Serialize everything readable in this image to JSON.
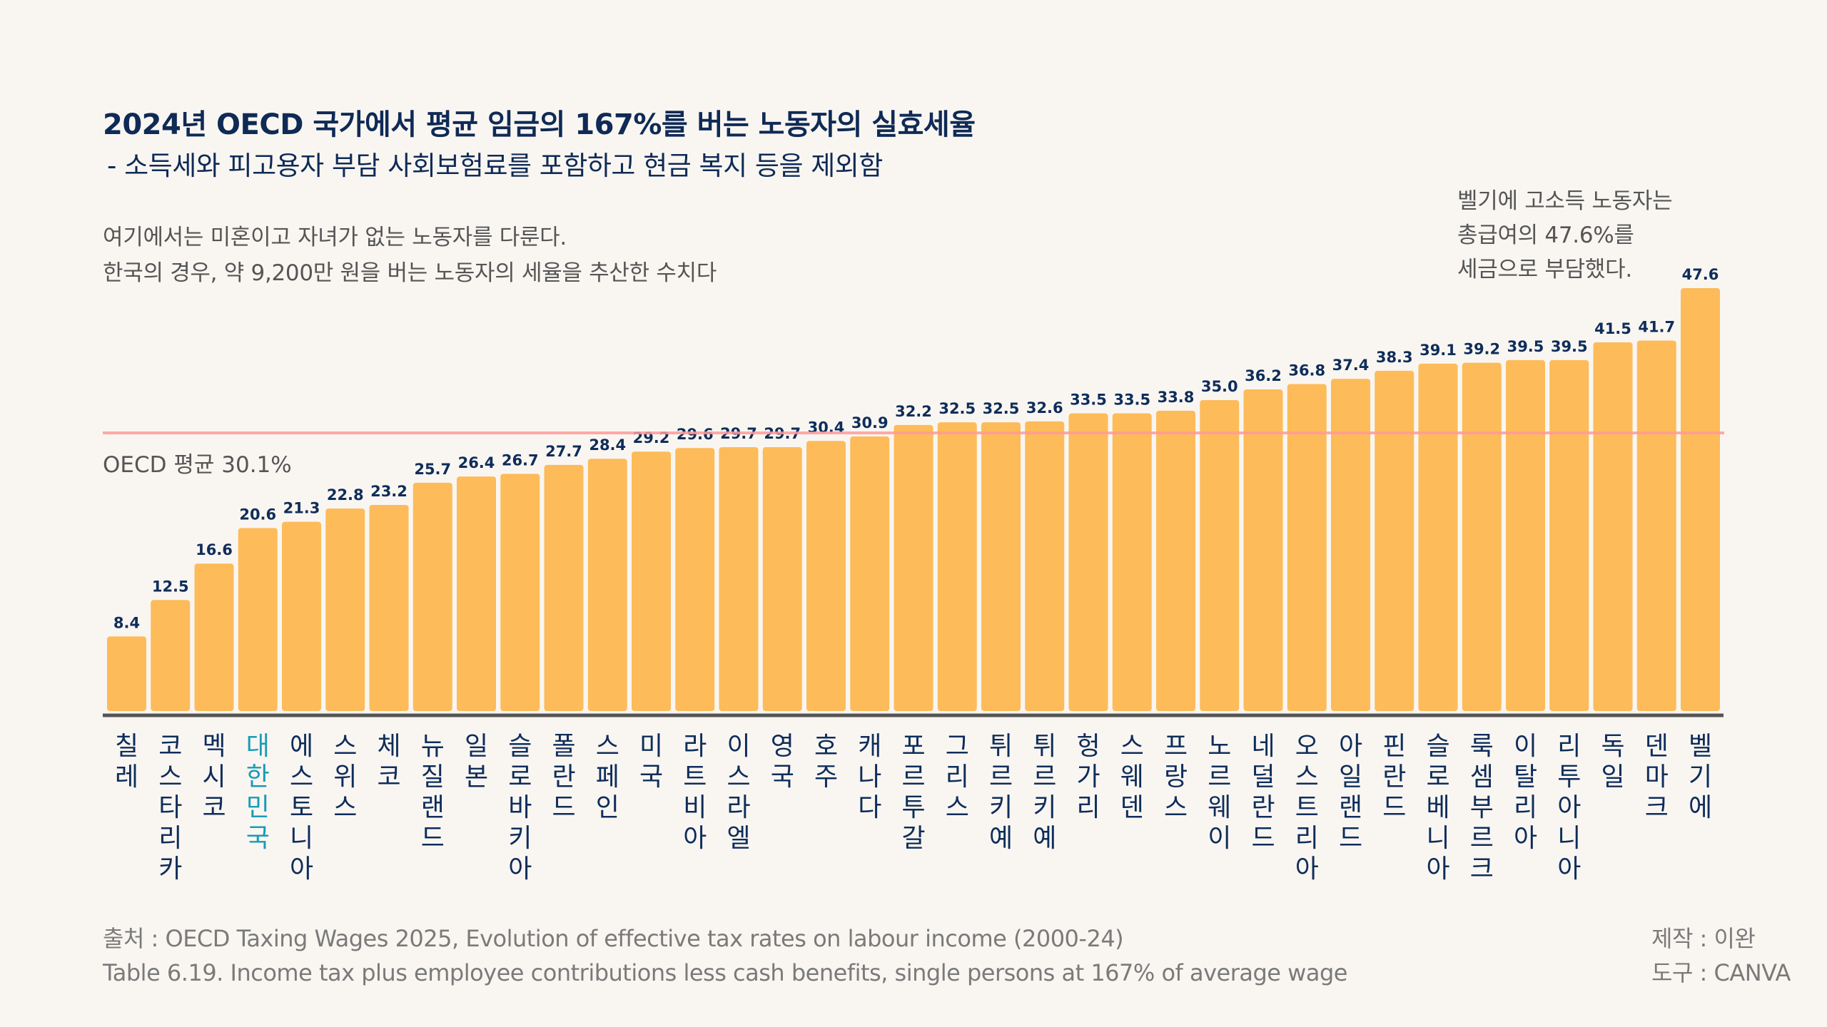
{
  "header": {
    "title": "2024년 OECD 국가에서 평균 임금의 167%를 버는 노동자의 실효세율",
    "subtitle": "- 소득세와 피고용자 부담 사회보험료를 포함하고 현금 복지 등을 제외함"
  },
  "notes": {
    "line1": "여기에서는 미혼이고 자녀가 없는 노동자를 다룬다.",
    "line2": "한국의 경우, 약 9,200만 원을 버는 노동자의 세율을 추산한 수치다"
  },
  "callout": {
    "line1": "벨기에 고소득 노동자는",
    "line2": "총급여의 47.6%를",
    "line3": "세금으로 부담했다."
  },
  "footer": {
    "source_line1": "출처 : OECD Taxing Wages 2025, Evolution of effective tax rates on labour income (2000-24)",
    "source_line2": "Table 6.19. Income tax plus employee contributions less cash benefits, single persons at 167% of average wage",
    "credit_maker": "제작 : 이완",
    "credit_tool": "도구 : CANVA"
  },
  "colors": {
    "background": "#f9f6f2",
    "bar": "#fdbb59",
    "value_label": "#0f2d5a",
    "category_label": "#0f2d5a",
    "highlight_label": "#1a9bb5",
    "average_line": "#ff9a9a",
    "axis": "#555555"
  },
  "chart_data": {
    "type": "bar",
    "title": "2024년 OECD 국가에서 평균 임금의 167%를 버는 노동자의 실효세율",
    "subtitle": "- 소득세와 피고용자 부담 사회보험료를 포함하고 현금 복지 등을 제외함",
    "xlabel": "",
    "ylabel": "",
    "ylim": [
      0,
      47.6
    ],
    "grid": false,
    "legend": "none",
    "highlight": "대한민국",
    "reference_line": {
      "label": "OECD 평균 30.1%",
      "value": 30.1
    },
    "categories": [
      "칠레",
      "코스타리카",
      "멕시코",
      "대한민국",
      "에스토니아",
      "스위스",
      "체코",
      "뉴질랜드",
      "일본",
      "슬로바키아",
      "폴란드",
      "스페인",
      "미국",
      "라트비아",
      "이스라엘",
      "영국",
      "호주",
      "캐나다",
      "포르투갈",
      "그리스",
      "튀르키예",
      "튀르키예",
      "헝가리",
      "스웨덴",
      "프랑스",
      "노르웨이",
      "네덜란드",
      "오스트리아",
      "아일랜드",
      "핀란드",
      "슬로베니아",
      "룩셈부르크",
      "이탈리아",
      "리투아니아",
      "독일",
      "덴마크",
      "벨기에"
    ],
    "values": [
      8.4,
      12.5,
      16.6,
      20.6,
      21.3,
      22.8,
      23.2,
      25.7,
      26.4,
      26.7,
      27.7,
      28.4,
      29.2,
      29.6,
      29.7,
      29.7,
      30.4,
      30.9,
      32.2,
      32.5,
      32.5,
      32.6,
      33.5,
      33.5,
      33.8,
      35.0,
      36.2,
      36.8,
      37.4,
      38.3,
      39.1,
      39.2,
      39.5,
      39.5,
      41.5,
      41.7,
      47.6
    ],
    "value_labels": [
      "8.4",
      "12.5",
      "16.6",
      "20.6",
      "21.3",
      "22.8",
      "23.2",
      "25.7",
      "26.4",
      "26.7",
      "27.7",
      "28.4",
      "29.2",
      "29.6",
      "29.7",
      "29.7",
      "30.4",
      "30.9",
      "32.2",
      "32.5",
      "32.5",
      "32.6",
      "33.5",
      "33.5",
      "33.8",
      "35.0",
      "36.2",
      "36.8",
      "37.4",
      "38.3",
      "39.1",
      "39.2",
      "39.5",
      "39.5",
      "41.5",
      "41.7",
      "47.6"
    ]
  }
}
